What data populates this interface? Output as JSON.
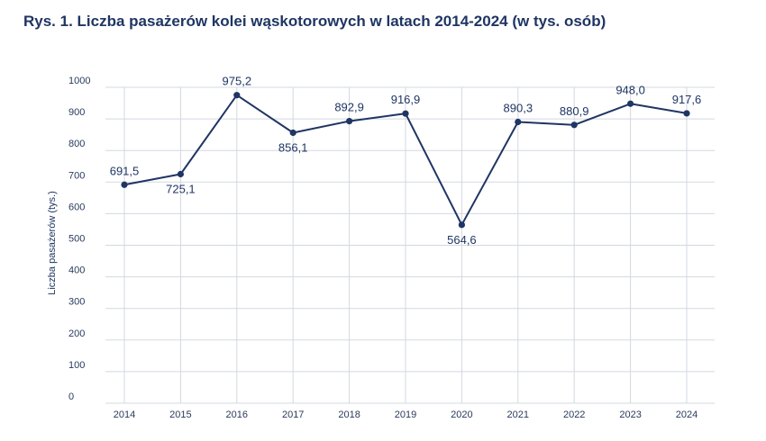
{
  "chart_data": {
    "type": "line",
    "title": "Rys. 1. Liczba pasażerów kolei wąskotorowych w latach 2014-2024 (w tys. osób)",
    "xlabel": "",
    "ylabel": "Liczba pasażerów (tys.)",
    "ylim": [
      0,
      1000
    ],
    "y_ticks": [
      0,
      100,
      200,
      300,
      400,
      500,
      600,
      700,
      800,
      900,
      1000
    ],
    "grid": true,
    "legend": "none",
    "categories": [
      "2014",
      "2015",
      "2016",
      "2017",
      "2018",
      "2019",
      "2020",
      "2021",
      "2022",
      "2023",
      "2024"
    ],
    "series": [
      {
        "values": [
          691.5,
          725.1,
          975.2,
          856.1,
          892.9,
          916.9,
          564.6,
          890.3,
          880.9,
          948.0,
          917.6
        ],
        "labels": [
          "691,5",
          "725,1",
          "975,2",
          "856,1",
          "892,9",
          "916,9",
          "564,6",
          "890,3",
          "880,9",
          "948,0",
          "917,6"
        ],
        "label_positions": [
          "above",
          "below",
          "above",
          "below",
          "above",
          "above",
          "below",
          "above",
          "above",
          "above",
          "above"
        ],
        "color": "#1f3563"
      }
    ],
    "grid_color": "#d3d8e0"
  }
}
